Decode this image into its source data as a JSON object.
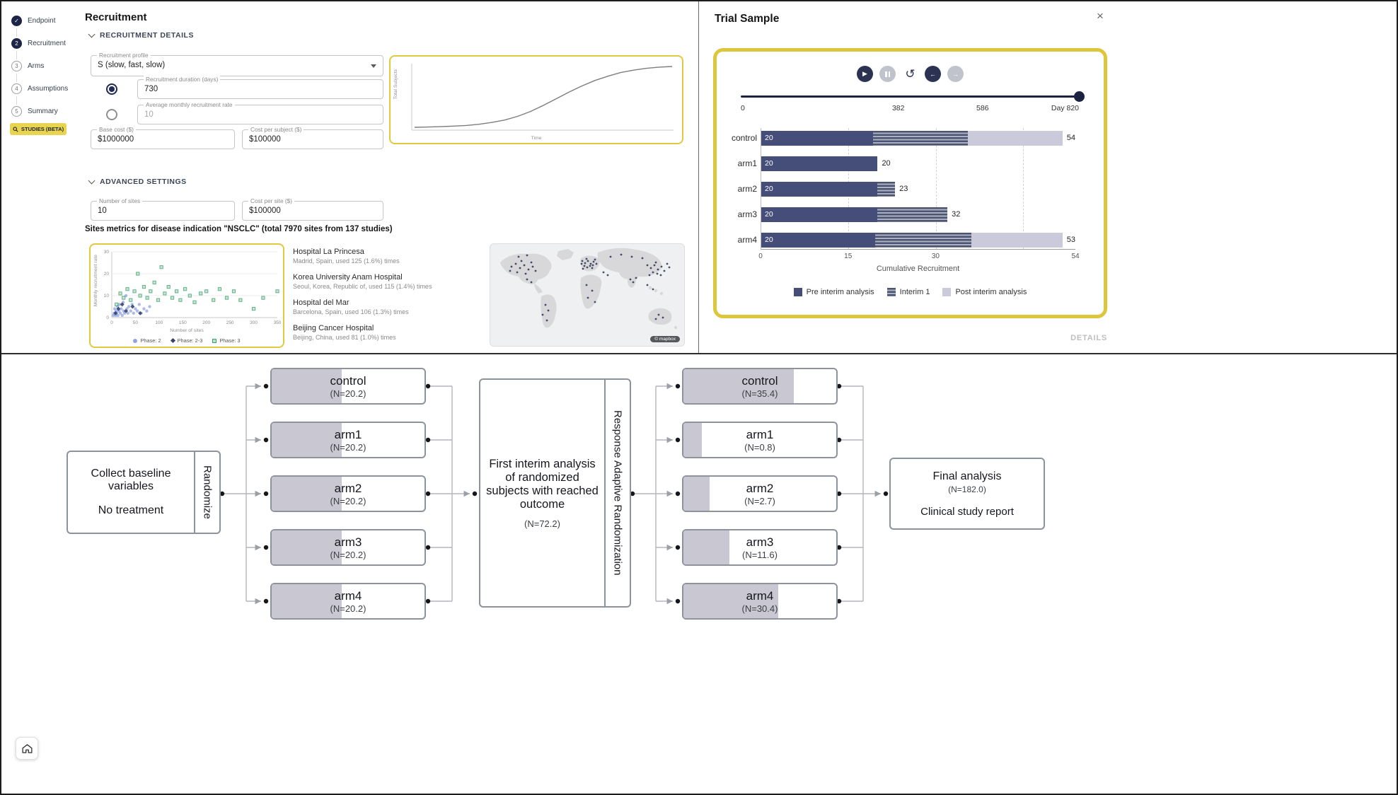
{
  "icons": {
    "play": "▶",
    "replay": "↺",
    "prev": "←",
    "next": "→",
    "close": "×",
    "check": "✓"
  },
  "sidebar": {
    "steps": [
      {
        "label": "Endpoint",
        "marker": "✓",
        "state": "done"
      },
      {
        "label": "Recruitment",
        "marker": "2",
        "state": "active"
      },
      {
        "label": "Arms",
        "marker": "3",
        "state": "todo"
      },
      {
        "label": "Assumptions",
        "marker": "4",
        "state": "todo"
      },
      {
        "label": "Summary",
        "marker": "5",
        "state": "todo"
      }
    ],
    "studies_button_label": "STUDIES (BETA)"
  },
  "recruitment_panel": {
    "title": "Recruitment",
    "sections": {
      "details": "RECRUITMENT DETAILS",
      "advanced": "ADVANCED SETTINGS"
    },
    "fields": {
      "profile": {
        "label": "Recruitment profile",
        "value": "S (slow, fast, slow)"
      },
      "duration": {
        "label": "Recruitment duration (days)",
        "value": "730"
      },
      "monthly_rate": {
        "label": "Average monthly recruitment rate",
        "value": "10"
      },
      "base_cost": {
        "label": "Base cost ($)",
        "value": "$1000000"
      },
      "cost_per_subject": {
        "label": "Cost per subject ($)",
        "value": "$100000"
      },
      "number_of_sites": {
        "label": "Number of sites",
        "value": "10"
      },
      "cost_per_site": {
        "label": "Cost per site ($)",
        "value": "$100000"
      }
    },
    "metrics_title": "Sites metrics for disease indication \"NSCLC\" (total 7970 sites from 137 studies)",
    "hospitals": [
      {
        "name": "Hospital La Princesa",
        "detail": "Madrid, Spain, used 125 (1.6%) times"
      },
      {
        "name": "Korea University Anam Hospital",
        "detail": "Seoul, Korea, Republic of, used 115 (1.4%) times"
      },
      {
        "name": "Hospital del Mar",
        "detail": "Barcelona, Spain, used 106 (1.3%) times"
      },
      {
        "name": "Beijing Cancer Hospital",
        "detail": "Beijing, China, used 81 (1.0%) times"
      }
    ],
    "map_attribution": "© mapbox"
  },
  "trial_panel": {
    "title": "Trial Sample",
    "details_label": "DETAILS",
    "slider": {
      "min": 0,
      "max": 820,
      "value": 820,
      "tick_labels": [
        "0",
        "382",
        "586",
        "Day 820"
      ]
    },
    "legend": [
      "Pre interim analysis",
      "Interim 1",
      "Post interim analysis"
    ]
  },
  "chart_data": [
    {
      "id": "recruitment_curve",
      "type": "line",
      "xlabel": "Time",
      "ylabel": "Total Subjects",
      "note": "S-shaped cumulative recruitment curve (slow, fast, slow), duration 730 days",
      "x_pct": [
        0,
        5,
        10,
        15,
        20,
        25,
        30,
        35,
        40,
        45,
        50,
        55,
        60,
        65,
        70,
        75,
        80,
        85,
        90,
        95,
        100
      ],
      "y_pct": [
        0,
        0.5,
        1,
        2,
        3,
        5,
        8,
        12,
        18,
        26,
        36,
        47,
        58,
        68,
        77,
        84,
        90,
        94,
        97,
        99,
        100
      ]
    },
    {
      "id": "sites_scatter",
      "type": "scatter",
      "xlabel": "Number of sites",
      "ylabel": "Monthly recruitment rate",
      "xlim": [
        0,
        350
      ],
      "ylim": [
        0,
        30
      ],
      "xticks": [
        0,
        50,
        100,
        150,
        200,
        250,
        300,
        350
      ],
      "yticks": [
        0,
        10,
        20,
        30
      ],
      "series": [
        {
          "name": "Phase: 2",
          "marker": "circle",
          "color": "#6c83d6",
          "points": [
            [
              3,
              1
            ],
            [
              5,
              2
            ],
            [
              6,
              4
            ],
            [
              8,
              1
            ],
            [
              9,
              3
            ],
            [
              10,
              2
            ],
            [
              12,
              5
            ],
            [
              13,
              1
            ],
            [
              15,
              3
            ],
            [
              16,
              6
            ],
            [
              18,
              2
            ],
            [
              20,
              4
            ],
            [
              22,
              1
            ],
            [
              24,
              7
            ],
            [
              25,
              3
            ],
            [
              27,
              2
            ],
            [
              30,
              10
            ],
            [
              32,
              4
            ],
            [
              34,
              2
            ],
            [
              36,
              5
            ],
            [
              40,
              3
            ],
            [
              43,
              6
            ],
            [
              46,
              2
            ],
            [
              50,
              4
            ],
            [
              54,
              3
            ],
            [
              58,
              6
            ],
            [
              62,
              2
            ],
            [
              68,
              4
            ],
            [
              74,
              3
            ],
            [
              80,
              5
            ]
          ]
        },
        {
          "name": "Phase: 2-3",
          "marker": "diamond",
          "color": "#35406e",
          "points": [
            [
              8,
              2
            ],
            [
              14,
              4
            ],
            [
              22,
              6
            ],
            [
              30,
              3
            ],
            [
              44,
              5
            ],
            [
              60,
              2
            ]
          ]
        },
        {
          "name": "Phase: 3",
          "marker": "square",
          "color": "#3f9e6e",
          "fill": "#b7e3c9",
          "points": [
            [
              10,
              6
            ],
            [
              18,
              11
            ],
            [
              25,
              9
            ],
            [
              33,
              13
            ],
            [
              40,
              8
            ],
            [
              48,
              12
            ],
            [
              55,
              20
            ],
            [
              60,
              10
            ],
            [
              68,
              14
            ],
            [
              75,
              9
            ],
            [
              82,
              12
            ],
            [
              90,
              16
            ],
            [
              98,
              8
            ],
            [
              105,
              23
            ],
            [
              112,
              11
            ],
            [
              120,
              14
            ],
            [
              128,
              9
            ],
            [
              137,
              12
            ],
            [
              145,
              8
            ],
            [
              155,
              13
            ],
            [
              165,
              10
            ],
            [
              175,
              7
            ],
            [
              188,
              11
            ],
            [
              200,
              12
            ],
            [
              215,
              8
            ],
            [
              228,
              13
            ],
            [
              243,
              9
            ],
            [
              258,
              12
            ],
            [
              272,
              8
            ],
            [
              300,
              4
            ],
            [
              320,
              9
            ],
            [
              350,
              12
            ]
          ]
        }
      ]
    },
    {
      "id": "trial_sample_bars",
      "type": "stacked_bar_horizontal",
      "categories": [
        "control",
        "arm1",
        "arm2",
        "arm3",
        "arm4"
      ],
      "series": [
        {
          "name": "Pre interim analysis",
          "color": "#454d79",
          "values": [
            20,
            20,
            20,
            20,
            20
          ]
        },
        {
          "name": "Interim 1",
          "color": "striped-gray",
          "values": [
            17,
            0,
            3,
            12,
            17
          ]
        },
        {
          "name": "Post interim analysis",
          "color": "#cbcada",
          "values": [
            17,
            0,
            0,
            0,
            16
          ]
        }
      ],
      "bar_start_labels": [
        "20",
        "20",
        "20",
        "20",
        "20"
      ],
      "bar_end_labels": [
        "54",
        "20",
        "23",
        "32",
        "53"
      ],
      "xlabel": "Cumulative Recruitment",
      "xticks": [
        0,
        15,
        30,
        54
      ],
      "xlim": [
        0,
        54
      ],
      "gridlines": [
        15,
        30,
        45
      ],
      "legend_position": "bottom"
    }
  ],
  "diagram": {
    "start": {
      "line1": "Collect baseline variables",
      "line2": "No treatment",
      "side_label": "Randomize"
    },
    "stage1": [
      {
        "label": "control",
        "n": "(N=20.2)",
        "fill_pct": 46
      },
      {
        "label": "arm1",
        "n": "(N=20.2)",
        "fill_pct": 46
      },
      {
        "label": "arm2",
        "n": "(N=20.2)",
        "fill_pct": 46
      },
      {
        "label": "arm3",
        "n": "(N=20.2)",
        "fill_pct": 46
      },
      {
        "label": "arm4",
        "n": "(N=20.2)",
        "fill_pct": 46
      }
    ],
    "interim": {
      "text": "First interim analysis of randomized subjects with reached outcome",
      "n": "(N=72.2)",
      "side_label": "Response Adaptive Randomization"
    },
    "stage2": [
      {
        "label": "control",
        "n": "(N=35.4)",
        "fill_pct": 72
      },
      {
        "label": "arm1",
        "n": "(N=0.8)",
        "fill_pct": 12
      },
      {
        "label": "arm2",
        "n": "(N=2.7)",
        "fill_pct": 17
      },
      {
        "label": "arm3",
        "n": "(N=11.6)",
        "fill_pct": 30
      },
      {
        "label": "arm4",
        "n": "(N=30.4)",
        "fill_pct": 62
      }
    ],
    "final": {
      "line1": "Final analysis",
      "n": "(N=182.0)",
      "line2": "Clinical study report"
    }
  }
}
